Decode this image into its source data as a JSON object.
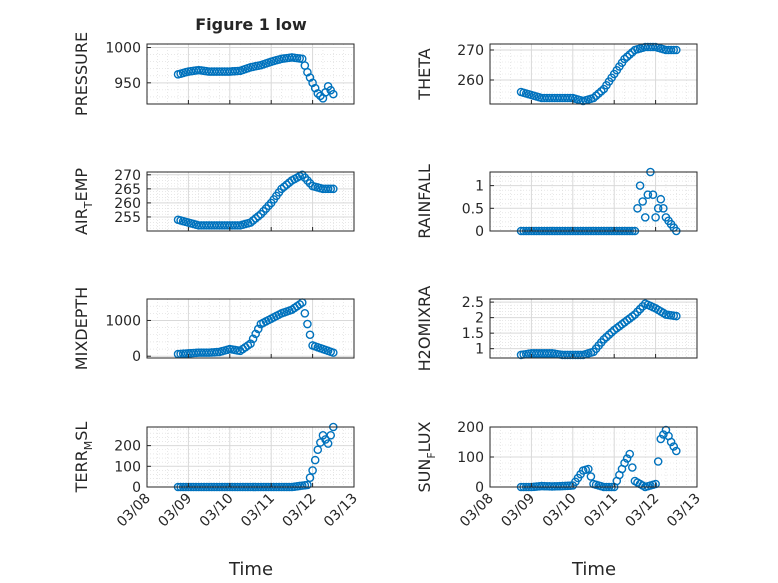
{
  "figure_title": "Figure 1 low",
  "xlabel": "Time",
  "style": {
    "marker_color": "#0072BD",
    "grid_color": "#d9d9d9",
    "axis_color": "#262626"
  },
  "x_axis": {
    "range": [
      "03/08",
      "03/13"
    ],
    "ticks": [
      "03/08",
      "03/09",
      "03/10",
      "03/11",
      "03/12",
      "03/13"
    ],
    "tick_labels_shown_on": "bottom-row-only",
    "tick_label_rotation_deg": -45
  },
  "chart_data": [
    {
      "type": "scatter",
      "title": "Figure 1 low",
      "ylabel": "PRESSURE",
      "ylim": [
        920,
        1005
      ],
      "yticks": [
        950,
        1000
      ],
      "grid": true,
      "minor_grid": true,
      "x": [
        "03/08 18:00",
        "03/09 00:00",
        "03/09 06:00",
        "03/09 12:00",
        "03/09 18:00",
        "03/10 00:00",
        "03/10 06:00",
        "03/10 12:00",
        "03/10 18:00",
        "03/11 00:00",
        "03/11 06:00",
        "03/11 12:00",
        "03/11 18:00",
        "03/11 21:00",
        "03/12 00:00",
        "03/12 03:00",
        "03/12 06:00",
        "03/12 09:00",
        "03/12 12:00"
      ],
      "y": [
        962,
        966,
        968,
        966,
        966,
        966,
        967,
        972,
        975,
        980,
        984,
        986,
        984,
        965,
        950,
        935,
        928,
        945,
        934
      ]
    },
    {
      "type": "scatter",
      "title": "",
      "ylabel": "THETA",
      "ylim": [
        252,
        272
      ],
      "yticks": [
        260,
        270
      ],
      "grid": true,
      "minor_grid": true,
      "x": [
        "03/08 18:00",
        "03/09 00:00",
        "03/09 06:00",
        "03/09 12:00",
        "03/09 18:00",
        "03/10 00:00",
        "03/10 06:00",
        "03/10 12:00",
        "03/10 18:00",
        "03/11 00:00",
        "03/11 06:00",
        "03/11 12:00",
        "03/11 18:00",
        "03/12 00:00",
        "03/12 06:00",
        "03/12 12:00"
      ],
      "y": [
        256,
        255,
        254,
        254,
        254,
        254,
        253,
        254,
        257,
        262,
        267,
        270,
        271,
        271,
        270,
        270
      ]
    },
    {
      "type": "scatter",
      "title": "",
      "ylabel": "AIR_T_EMP",
      "ylim": [
        250,
        271
      ],
      "yticks": [
        255,
        260,
        265,
        270
      ],
      "grid": true,
      "minor_grid": true,
      "x": [
        "03/08 18:00",
        "03/09 00:00",
        "03/09 06:00",
        "03/09 12:00",
        "03/09 18:00",
        "03/10 00:00",
        "03/10 06:00",
        "03/10 12:00",
        "03/10 18:00",
        "03/11 00:00",
        "03/11 06:00",
        "03/11 12:00",
        "03/11 18:00",
        "03/12 00:00",
        "03/12 06:00",
        "03/12 12:00"
      ],
      "y": [
        254,
        253,
        252,
        252,
        252,
        252,
        252,
        253,
        256,
        260,
        265,
        268,
        270,
        266,
        265,
        265
      ]
    },
    {
      "type": "scatter",
      "title": "",
      "ylabel": "RAINFALL",
      "ylim": [
        0,
        1.3
      ],
      "yticks": [
        0,
        0.5,
        1
      ],
      "grid": true,
      "minor_grid": true,
      "x": [
        "03/08 18:00",
        "03/09 00:00",
        "03/09 12:00",
        "03/10 00:00",
        "03/10 12:00",
        "03/11 00:00",
        "03/11 06:00",
        "03/11 12:00",
        "03/11 15:00",
        "03/11 18:00",
        "03/11 21:00",
        "03/12 00:00",
        "03/12 03:00",
        "03/12 06:00",
        "03/12 12:00"
      ],
      "y": [
        0,
        0,
        0,
        0,
        0,
        0,
        0,
        0,
        1.0,
        0.3,
        1.3,
        0.3,
        0.7,
        0.3,
        0
      ]
    },
    {
      "type": "scatter",
      "title": "",
      "ylabel": "MIXDEPTH",
      "ylim": [
        -50,
        1600
      ],
      "yticks": [
        0,
        1000
      ],
      "grid": true,
      "minor_grid": true,
      "x": [
        "03/08 18:00",
        "03/09 00:00",
        "03/09 06:00",
        "03/09 12:00",
        "03/09 18:00",
        "03/10 00:00",
        "03/10 06:00",
        "03/10 12:00",
        "03/10 18:00",
        "03/11 00:00",
        "03/11 06:00",
        "03/11 12:00",
        "03/11 18:00",
        "03/12 00:00",
        "03/12 06:00",
        "03/12 12:00"
      ],
      "y": [
        60,
        80,
        100,
        100,
        120,
        200,
        150,
        350,
        900,
        1050,
        1200,
        1300,
        1500,
        300,
        200,
        100
      ]
    },
    {
      "type": "scatter",
      "title": "",
      "ylabel": "H2OMIXRA",
      "ylim": [
        0.7,
        2.6
      ],
      "yticks": [
        1,
        1.5,
        2,
        2.5
      ],
      "grid": true,
      "minor_grid": true,
      "x": [
        "03/08 18:00",
        "03/09 00:00",
        "03/09 06:00",
        "03/09 12:00",
        "03/09 18:00",
        "03/10 00:00",
        "03/10 06:00",
        "03/10 12:00",
        "03/10 18:00",
        "03/11 00:00",
        "03/11 06:00",
        "03/11 12:00",
        "03/11 18:00",
        "03/12 00:00",
        "03/12 06:00",
        "03/12 12:00"
      ],
      "y": [
        0.8,
        0.85,
        0.85,
        0.85,
        0.8,
        0.8,
        0.8,
        0.9,
        1.3,
        1.6,
        1.85,
        2.1,
        2.45,
        2.3,
        2.1,
        2.05
      ]
    },
    {
      "type": "scatter",
      "title": "",
      "ylabel": "TERR_M_SL",
      "ylim": [
        0,
        290
      ],
      "yticks": [
        0,
        100,
        200
      ],
      "grid": true,
      "minor_grid": true,
      "x": [
        "03/08 18:00",
        "03/09 00:00",
        "03/09 12:00",
        "03/10 00:00",
        "03/10 12:00",
        "03/11 00:00",
        "03/11 12:00",
        "03/11 21:00",
        "03/12 00:00",
        "03/12 03:00",
        "03/12 06:00",
        "03/12 09:00",
        "03/12 12:00"
      ],
      "y": [
        0,
        0,
        0,
        0,
        0,
        0,
        0,
        10,
        80,
        180,
        250,
        210,
        290
      ]
    },
    {
      "type": "scatter",
      "title": "",
      "ylabel": "SUN_F_LUX",
      "ylim": [
        0,
        200
      ],
      "yticks": [
        0,
        100,
        200
      ],
      "grid": true,
      "minor_grid": true,
      "x": [
        "03/08 18:00",
        "03/09 00:00",
        "03/09 06:00",
        "03/09 12:00",
        "03/09 18:00",
        "03/10 00:00",
        "03/10 06:00",
        "03/10 09:00",
        "03/10 12:00",
        "03/10 18:00",
        "03/11 00:00",
        "03/11 06:00",
        "03/11 09:00",
        "03/11 12:00",
        "03/11 18:00",
        "03/12 00:00",
        "03/12 03:00",
        "03/12 06:00",
        "03/12 09:00",
        "03/12 12:00"
      ],
      "y": [
        0,
        0,
        3,
        2,
        3,
        5,
        55,
        60,
        10,
        0,
        0,
        80,
        110,
        20,
        0,
        10,
        160,
        190,
        150,
        120
      ]
    }
  ]
}
